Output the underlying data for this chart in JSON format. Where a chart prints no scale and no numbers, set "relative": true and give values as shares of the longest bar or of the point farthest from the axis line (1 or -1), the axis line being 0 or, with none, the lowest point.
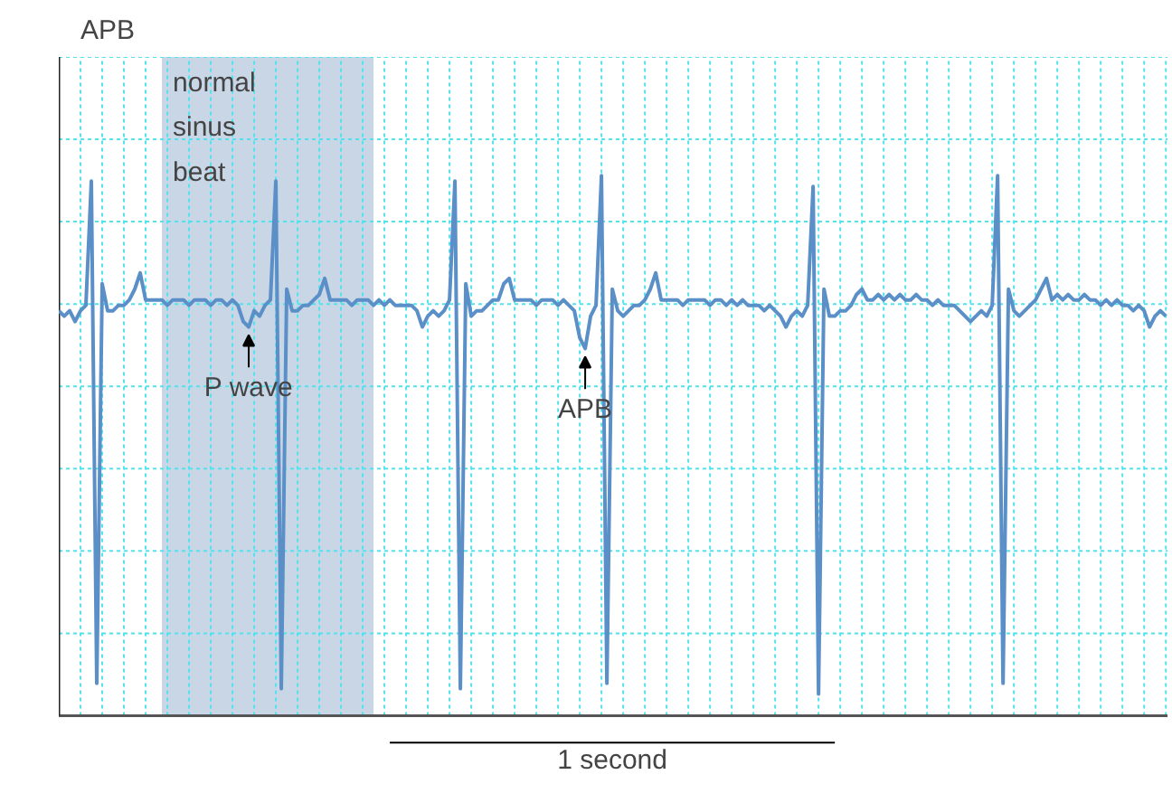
{
  "chart_data": {
    "type": "line",
    "title": "APB",
    "relative": true,
    "grid": true,
    "categories": [
      null,
      null,
      null,
      null,
      null,
      null,
      null,
      null,
      null,
      null,
      null,
      null,
      null,
      null,
      null,
      null,
      null,
      null,
      null,
      null,
      null,
      null,
      null,
      null,
      null,
      null,
      null,
      null,
      null,
      null,
      null,
      null,
      null,
      null,
      null,
      null,
      null,
      null,
      null,
      null,
      null,
      null,
      null,
      null,
      null,
      null,
      null,
      null,
      null,
      null,
      null,
      null,
      null,
      null,
      null,
      null,
      null,
      null,
      null,
      null,
      null,
      null,
      null,
      null,
      null,
      null,
      null,
      null,
      null,
      null,
      null,
      null,
      null,
      null,
      null,
      null,
      null,
      null,
      null,
      null,
      null,
      null,
      null,
      null,
      null,
      null,
      null,
      null,
      null,
      null,
      null,
      null,
      null,
      null,
      null,
      null,
      null,
      null,
      null,
      null,
      null,
      null,
      null,
      null,
      null,
      null,
      null,
      null,
      null,
      null,
      null,
      null,
      null,
      null,
      null,
      null,
      null,
      null,
      null,
      null,
      null,
      null,
      null,
      null,
      null,
      null,
      null,
      null,
      null,
      null,
      null,
      null,
      null,
      null,
      null,
      null,
      null,
      null,
      null,
      null,
      null,
      null,
      null,
      null,
      null,
      null,
      null,
      null,
      null,
      null,
      null,
      null,
      null,
      null,
      null,
      null,
      null,
      null,
      null,
      null,
      null,
      null,
      null,
      null,
      null,
      null,
      null,
      null,
      null,
      null,
      null,
      null,
      null,
      null,
      null,
      null,
      null,
      null,
      null,
      null,
      null,
      null,
      null,
      null,
      null,
      null,
      null,
      null,
      null,
      null,
      null,
      null,
      null,
      null,
      null,
      null,
      null,
      null,
      null,
      null,
      null,
      null,
      null,
      null,
      null
    ],
    "annotations": [
      "normal sinus beat",
      {
        "text": "P wave",
        "y": 0.72
      },
      {
        "text": "APB",
        "y": 0.68
      },
      "1 second"
    ],
    "series": [
      {
        "color": "#5b8fc7",
        "values": [
          0.75,
          0.74,
          0.75,
          0.73,
          0.75,
          0.76,
          0.99,
          0.06,
          0.8,
          0.75,
          0.75,
          0.76,
          0.76,
          0.77,
          0.79,
          0.82,
          0.77,
          0.77,
          0.77,
          0.77,
          0.76,
          0.77,
          0.77,
          0.77,
          0.76,
          0.77,
          0.77,
          0.77,
          0.76,
          0.77,
          0.77,
          0.76,
          0.77,
          0.76,
          0.73,
          0.72,
          0.75,
          0.74,
          0.76,
          0.77,
          0.99,
          0.05,
          0.79,
          0.75,
          0.75,
          0.76,
          0.76,
          0.77,
          0.78,
          0.81,
          0.77,
          0.77,
          0.77,
          0.77,
          0.76,
          0.77,
          0.77,
          0.77,
          0.76,
          0.77,
          0.76,
          0.77,
          0.76,
          0.76,
          0.76,
          0.76,
          0.75,
          0.72,
          0.74,
          0.75,
          0.74,
          0.75,
          0.77,
          0.99,
          0.05,
          0.8,
          0.74,
          0.75,
          0.75,
          0.76,
          0.77,
          0.77,
          0.8,
          0.81,
          0.77,
          0.77,
          0.77,
          0.77,
          0.76,
          0.77,
          0.77,
          0.77,
          0.76,
          0.77,
          0.76,
          0.75,
          0.7,
          0.68,
          0.74,
          0.76,
          1.0,
          0.06,
          0.79,
          0.75,
          0.74,
          0.75,
          0.76,
          0.76,
          0.77,
          0.79,
          0.82,
          0.77,
          0.77,
          0.77,
          0.77,
          0.76,
          0.77,
          0.77,
          0.77,
          0.77,
          0.76,
          0.77,
          0.77,
          0.76,
          0.77,
          0.76,
          0.77,
          0.76,
          0.76,
          0.76,
          0.75,
          0.76,
          0.75,
          0.74,
          0.72,
          0.74,
          0.75,
          0.74,
          0.76,
          0.98,
          0.04,
          0.79,
          0.74,
          0.74,
          0.75,
          0.75,
          0.76,
          0.78,
          0.79,
          0.77,
          0.77,
          0.78,
          0.77,
          0.78,
          0.77,
          0.78,
          0.77,
          0.77,
          0.78,
          0.77,
          0.77,
          0.76,
          0.77,
          0.76,
          0.76,
          0.76,
          0.75,
          0.74,
          0.73,
          0.74,
          0.75,
          0.74,
          0.76,
          1.0,
          0.06,
          0.79,
          0.75,
          0.74,
          0.75,
          0.76,
          0.77,
          0.79,
          0.81,
          0.77,
          0.78,
          0.77,
          0.78,
          0.77,
          0.77,
          0.78,
          0.77,
          0.77,
          0.76,
          0.77,
          0.76,
          0.77,
          0.76,
          0.76,
          0.75,
          0.76,
          0.75,
          0.72,
          0.74,
          0.75,
          0.74
        ]
      }
    ]
  }
}
